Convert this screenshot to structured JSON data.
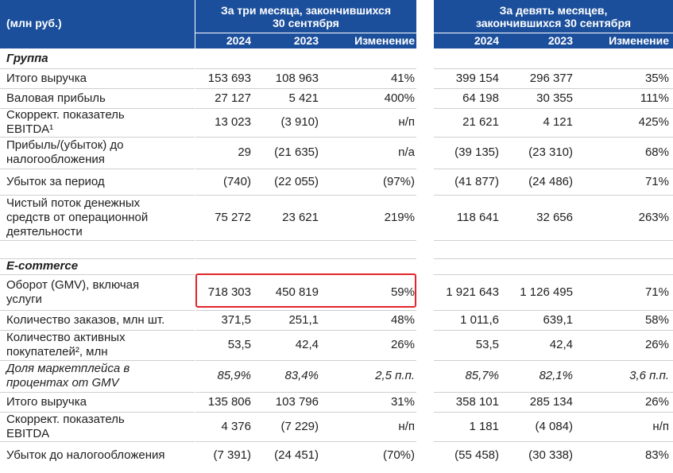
{
  "header": {
    "unit": "(млн руб.)",
    "period_3m": [
      "За три месяца, закончившихся",
      "30 сентября"
    ],
    "period_9m": [
      "За девять месяцев,",
      "закончившихся 30 сентября"
    ],
    "columns_3m": [
      "2024",
      "2023",
      "Изменение"
    ],
    "columns_9m": [
      "2024",
      "2023",
      "Изменение"
    ]
  },
  "sections": [
    {
      "title": "Группа",
      "rows": [
        {
          "label": [
            "Итого выручка"
          ],
          "cells": [
            "153 693",
            "108 963",
            "41%",
            "399 154",
            "296 377",
            "35%"
          ]
        },
        {
          "label": [
            "Валовая прибыль"
          ],
          "cells": [
            "27 127",
            "5 421",
            "400%",
            "64 198",
            "30 355",
            "111%"
          ]
        },
        {
          "label": [
            "Скоррект. показатель",
            "EBITDA¹"
          ],
          "cells": [
            "13 023",
            "(3 910)",
            "н/п",
            "21 621",
            "4 121",
            "425%"
          ]
        },
        {
          "label": [
            "Прибыль/(убыток) до",
            "налогообложения"
          ],
          "cells": [
            "29",
            "(21 635)",
            "n/a",
            "(39 135)",
            "(23 310)",
            "68%"
          ]
        },
        {
          "label": [
            "Убыток за период"
          ],
          "cells": [
            "(740)",
            "(22 055)",
            "(97%)",
            "(41 877)",
            "(24 486)",
            "71%"
          ]
        },
        {
          "label": [
            "Чистый поток денежных",
            "средств от операционной",
            "деятельности"
          ],
          "cells": [
            "75 272",
            "23 621",
            "219%",
            "118 641",
            "32 656",
            "263%"
          ]
        }
      ]
    },
    {
      "title": "E-commerce",
      "rows": [
        {
          "label": [
            "Оборот (GMV), включая",
            "услуги"
          ],
          "cells": [
            "718 303",
            "450 819",
            "59%",
            "1 921 643",
            "1 126 495",
            "71%"
          ]
        },
        {
          "label": [
            "Количество заказов, млн шт."
          ],
          "cells": [
            "371,5",
            "251,1",
            "48%",
            "1 011,6",
            "639,1",
            "58%"
          ]
        },
        {
          "label": [
            "Количество активных",
            "покупателей², млн"
          ],
          "cells": [
            "53,5",
            "42,4",
            "26%",
            "53,5",
            "42,4",
            "26%"
          ]
        },
        {
          "label": [
            "Доля маркетплейса в",
            "процентах от GMV"
          ],
          "cells": [
            "85,9%",
            "83,4%",
            "2,5 п.п.",
            "85,7%",
            "82,1%",
            "3,6 п.п."
          ]
        },
        {
          "label": [
            "Итого выручка"
          ],
          "cells": [
            "135 806",
            "103 796",
            "31%",
            "358 101",
            "285 134",
            "26%"
          ]
        },
        {
          "label": [
            "Скоррект. показатель",
            "EBITDA"
          ],
          "cells": [
            "4 376",
            "(7 229)",
            "н/п",
            "1 181",
            "(4 084)",
            "н/п"
          ]
        },
        {
          "label": [
            "Убыток до налогообложения"
          ],
          "cells": [
            "(7 391)",
            "(24 451)",
            "(70%)",
            "(55 458)",
            "(30 338)",
            "83%"
          ]
        }
      ]
    }
  ]
}
